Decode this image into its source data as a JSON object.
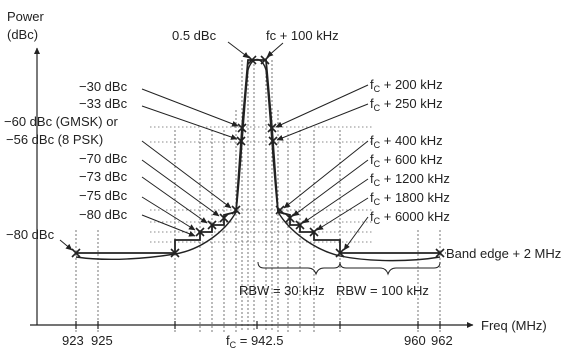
{
  "axes": {
    "y_title_line1": "Power",
    "y_title_line2": "(dBc)",
    "x_title": "Freq (MHz)"
  },
  "x_ticks": [
    {
      "id": "923",
      "label": "923"
    },
    {
      "id": "925",
      "label": "925"
    },
    {
      "id": "960",
      "label": "960"
    },
    {
      "id": "962",
      "label": "962"
    }
  ],
  "center_freq": {
    "prefix": "f",
    "sub": "C",
    "suffix": " = 942.5"
  },
  "left_labels": [
    {
      "id": "p05",
      "text": "0.5 dBc"
    },
    {
      "id": "m30",
      "text": "−30 dBc"
    },
    {
      "id": "m33",
      "text": "−33 dBc"
    },
    {
      "id": "gmsk",
      "text": "−60 dBc (GMSK) or"
    },
    {
      "id": "psk",
      "text": "−56 dBc (8 PSK)"
    },
    {
      "id": "m70",
      "text": "−70 dBc"
    },
    {
      "id": "m73",
      "text": "−73 dBc"
    },
    {
      "id": "m75",
      "text": "−75 dBc"
    },
    {
      "id": "m80",
      "text": "−80 dBc"
    },
    {
      "id": "m80b",
      "text": "−80 dBc"
    }
  ],
  "right_labels": [
    {
      "id": "o100",
      "text": "fc + 100 kHz"
    },
    {
      "id": "o200",
      "prefix": "f",
      "sub": "C",
      "suffix": " + 200 kHz"
    },
    {
      "id": "o250",
      "prefix": "f",
      "sub": "C",
      "suffix": " + 250 kHz"
    },
    {
      "id": "o400",
      "prefix": "f",
      "sub": "C",
      "suffix": " + 400 kHz"
    },
    {
      "id": "o600",
      "prefix": "f",
      "sub": "C",
      "suffix": " + 600 kHz"
    },
    {
      "id": "o1200",
      "prefix": "f",
      "sub": "C",
      "suffix": " + 1200 kHz"
    },
    {
      "id": "o1800",
      "prefix": "f",
      "sub": "C",
      "suffix": " + 1800 kHz"
    },
    {
      "id": "o6000",
      "prefix": "f",
      "sub": "C",
      "suffix": " + 6000 kHz"
    }
  ],
  "band_edge": "Band edge + 2 MHz",
  "rbw_30": "RBW = 30 kHz",
  "rbw_100": "RBW = 100 kHz"
}
